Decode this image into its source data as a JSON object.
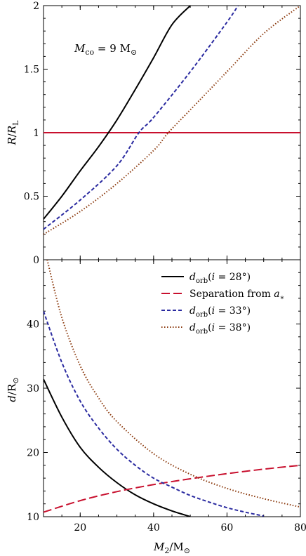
{
  "chart_data": [
    {
      "panel": "top",
      "type": "line",
      "xlim": [
        10,
        80
      ],
      "ylim": [
        0,
        2
      ],
      "xticks": [],
      "yticks": [
        "0",
        "0.5",
        "1",
        "1.5",
        "2"
      ],
      "ylabel": "R/RL",
      "annotation": "Mco = 9 M⊙",
      "hline": {
        "y": 1,
        "color": "#c8102e"
      },
      "series": [
        {
          "style": "solid",
          "color": "#000000",
          "x": [
            10,
            15,
            20,
            25,
            30,
            35,
            40,
            45,
            50
          ],
          "y": [
            0.32,
            0.5,
            0.7,
            0.89,
            1.1,
            1.34,
            1.59,
            1.85,
            2.0
          ]
        },
        {
          "style": "dashed",
          "color": "#2a2aa0",
          "x": [
            10,
            20,
            30,
            36,
            40,
            50,
            60,
            63
          ],
          "y": [
            0.24,
            0.47,
            0.74,
            1.0,
            1.12,
            1.48,
            1.87,
            2.0
          ]
        },
        {
          "style": "dotted",
          "color": "#8b3a0e",
          "x": [
            10,
            20,
            30,
            40,
            44,
            50,
            60,
            70,
            80
          ],
          "y": [
            0.2,
            0.38,
            0.6,
            0.86,
            1.0,
            1.18,
            1.48,
            1.78,
            2.0
          ]
        }
      ]
    },
    {
      "panel": "bottom",
      "type": "line",
      "xlim": [
        10,
        80
      ],
      "ylim": [
        10,
        50
      ],
      "xticks": [
        "20",
        "40",
        "60",
        "80"
      ],
      "yticks": [
        "10",
        "20",
        "30",
        "40"
      ],
      "xlabel": "M2/M⊙",
      "ylabel": "d/R⊙",
      "series": [
        {
          "name": "dorb(i = 28°)",
          "style": "solid",
          "color": "#000000",
          "x": [
            10,
            15,
            20,
            25,
            30,
            35,
            40,
            45,
            50
          ],
          "y": [
            31.4,
            25.5,
            20.8,
            17.7,
            15.3,
            13.4,
            12.0,
            10.9,
            10.0
          ]
        },
        {
          "name": "Separation from a*",
          "style": "dashed-long",
          "color": "#c8102e",
          "x": [
            10,
            20,
            30,
            40,
            50,
            60,
            70,
            80
          ],
          "y": [
            10.7,
            12.5,
            13.9,
            15.0,
            15.9,
            16.7,
            17.4,
            18.0
          ]
        },
        {
          "name": "dorb(i = 33°)",
          "style": "dashed",
          "color": "#2a2aa0",
          "x": [
            10,
            15,
            20,
            25,
            30,
            35,
            40,
            45,
            50,
            55,
            60,
            65,
            70
          ],
          "y": [
            42.0,
            34.0,
            28.0,
            23.8,
            20.5,
            18.0,
            16.0,
            14.6,
            13.3,
            12.3,
            11.4,
            10.7,
            10.1
          ]
        },
        {
          "name": "dorb(i = 38°)",
          "style": "dotted",
          "color": "#8b3a0e",
          "x": [
            11,
            15,
            20,
            25,
            30,
            40,
            50,
            60,
            70,
            80
          ],
          "y": [
            50.0,
            41.0,
            33.5,
            28.5,
            24.8,
            19.8,
            16.6,
            14.4,
            12.8,
            11.5
          ]
        }
      ],
      "legend": {
        "placement": "top-right",
        "entries": [
          {
            "prefix": "d",
            "sub": "orb",
            "suffix": "(i = 28°)"
          },
          {
            "text": "Separation from a*"
          },
          {
            "prefix": "d",
            "sub": "orb",
            "suffix": "(i = 33°)"
          },
          {
            "prefix": "d",
            "sub": "orb",
            "suffix": "(i = 38°)"
          }
        ]
      }
    }
  ]
}
